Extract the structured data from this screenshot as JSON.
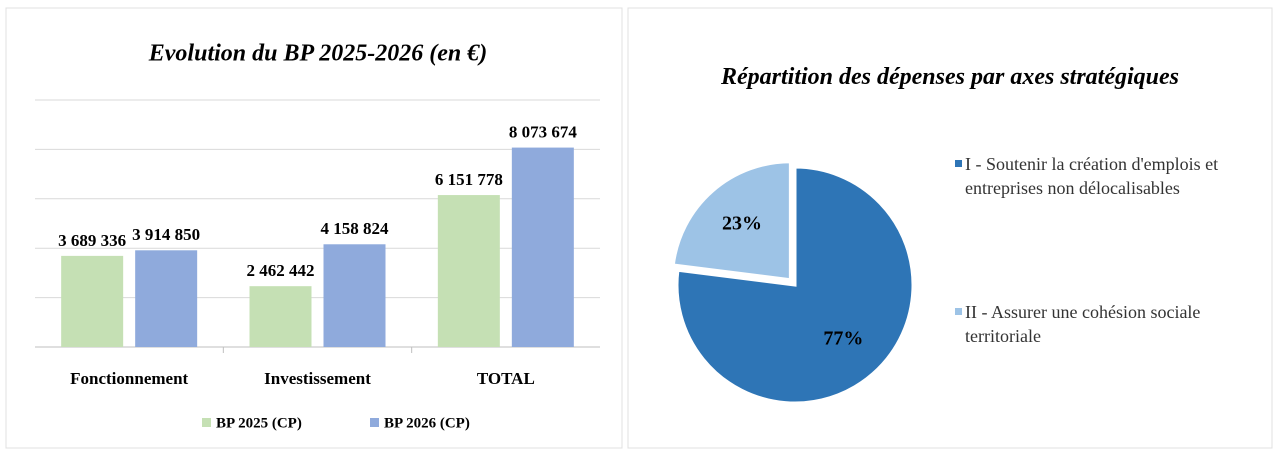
{
  "chart_data": [
    {
      "type": "bar",
      "title": "Evolution du BP 2025-2026 (en €)",
      "categories": [
        "Fonctionnement",
        "Investissement",
        "TOTAL"
      ],
      "series": [
        {
          "name": "BP 2025 (CP)",
          "color": "#c5e0b4",
          "values": [
            3689336,
            2462442,
            6151778
          ],
          "value_labels": [
            "3 689 336",
            "2 462 442",
            "6 151 778"
          ]
        },
        {
          "name": "BP 2026 (CP)",
          "color": "#8faadc",
          "values": [
            3914850,
            4158824,
            8073674
          ],
          "value_labels": [
            "3 914 850",
            "4 158 824",
            "8 073 674"
          ]
        }
      ],
      "ylim": [
        0,
        10000000
      ],
      "yticks": [
        0,
        2000000,
        4000000,
        6000000,
        8000000,
        10000000
      ],
      "ytick_labels": false,
      "grid": true,
      "legend": "bottom"
    },
    {
      "type": "pie",
      "title": "Répartition des dépenses par axes stratégiques",
      "categories": [
        "I - Soutenir la création d'emplois et entreprises non délocalisables",
        "II - Assurer une cohésion sociale territoriale"
      ],
      "values": [
        77,
        23
      ],
      "value_labels": [
        "77%",
        "23%"
      ],
      "colors": [
        "#2e75b6",
        "#9dc3e6"
      ],
      "legend": "right"
    }
  ]
}
